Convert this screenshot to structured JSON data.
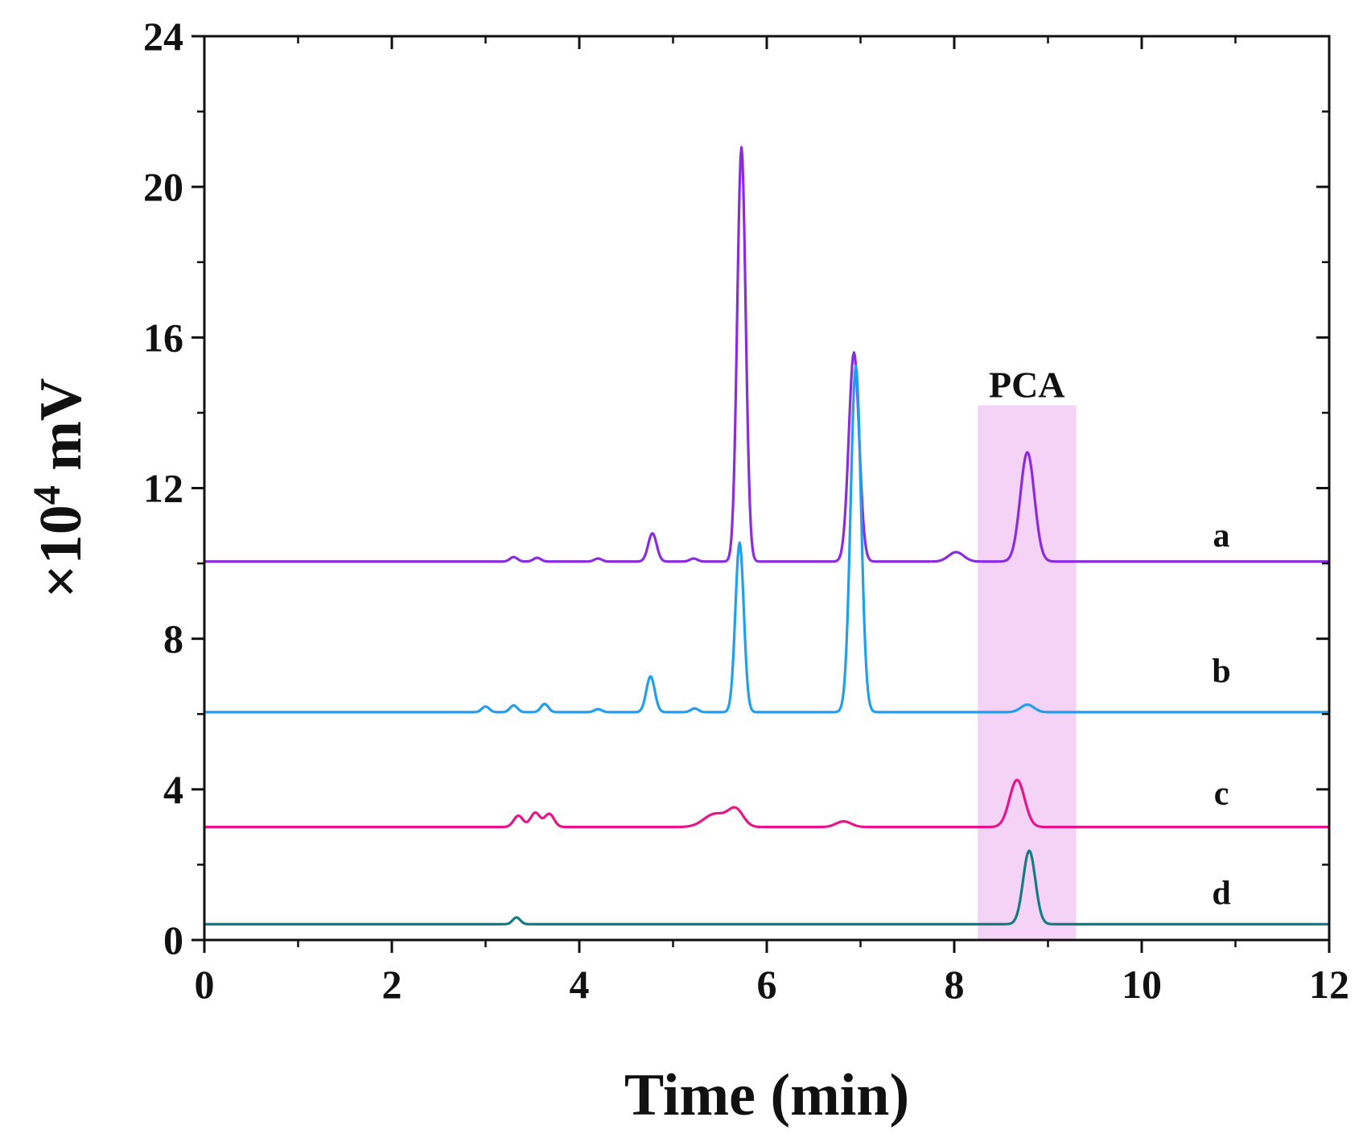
{
  "chart_data": {
    "type": "line",
    "xlabel": "Time (min)",
    "ylabel_prefix": "×10",
    "ylabel_exponent": "4",
    "ylabel_unit": " mV",
    "xlim": [
      0,
      12
    ],
    "ylim": [
      0,
      24
    ],
    "x_ticks": [
      0,
      2,
      4,
      6,
      8,
      10,
      12
    ],
    "y_ticks": [
      0,
      4,
      8,
      12,
      16,
      20,
      24
    ],
    "minor_ticks": true,
    "grid": false,
    "highlight_region": {
      "label": "PCA",
      "x_start": 8.25,
      "x_end": 9.3,
      "y_top": 14.2,
      "color": "#f5d3f7"
    },
    "series": [
      {
        "name": "a",
        "color": "#8a2be2",
        "baseline": 10.05,
        "label_x": 10.85,
        "label_y": 10.45,
        "peaks": [
          {
            "x": 3.3,
            "h": 0.12,
            "w": 0.04
          },
          {
            "x": 3.55,
            "h": 0.1,
            "w": 0.04
          },
          {
            "x": 4.2,
            "h": 0.08,
            "w": 0.04
          },
          {
            "x": 4.78,
            "h": 0.75,
            "w": 0.045
          },
          {
            "x": 5.22,
            "h": 0.08,
            "w": 0.04
          },
          {
            "x": 5.73,
            "h": 11.0,
            "w": 0.045
          },
          {
            "x": 6.93,
            "h": 5.55,
            "w": 0.055
          },
          {
            "x": 8.02,
            "h": 0.25,
            "w": 0.08
          },
          {
            "x": 8.78,
            "h": 2.9,
            "w": 0.075
          }
        ]
      },
      {
        "name": "b",
        "color": "#1e9fef",
        "baseline": 6.05,
        "label_x": 10.85,
        "label_y": 6.85,
        "peaks": [
          {
            "x": 3.0,
            "h": 0.15,
            "w": 0.04
          },
          {
            "x": 3.3,
            "h": 0.18,
            "w": 0.04
          },
          {
            "x": 3.63,
            "h": 0.22,
            "w": 0.04
          },
          {
            "x": 4.2,
            "h": 0.08,
            "w": 0.04
          },
          {
            "x": 4.76,
            "h": 0.95,
            "w": 0.045
          },
          {
            "x": 5.23,
            "h": 0.1,
            "w": 0.04
          },
          {
            "x": 5.71,
            "h": 4.5,
            "w": 0.045
          },
          {
            "x": 6.95,
            "h": 9.2,
            "w": 0.055
          },
          {
            "x": 8.78,
            "h": 0.2,
            "w": 0.07
          }
        ]
      },
      {
        "name": "c",
        "color": "#e6168a",
        "baseline": 3.0,
        "label_x": 10.85,
        "label_y": 3.6,
        "peaks": [
          {
            "x": 3.35,
            "h": 0.3,
            "w": 0.05
          },
          {
            "x": 3.53,
            "h": 0.38,
            "w": 0.05
          },
          {
            "x": 3.68,
            "h": 0.35,
            "w": 0.05
          },
          {
            "x": 5.45,
            "h": 0.35,
            "w": 0.12
          },
          {
            "x": 5.67,
            "h": 0.45,
            "w": 0.08
          },
          {
            "x": 6.82,
            "h": 0.15,
            "w": 0.08
          },
          {
            "x": 8.67,
            "h": 1.25,
            "w": 0.08
          }
        ]
      },
      {
        "name": "d",
        "color": "#157b82",
        "baseline": 0.42,
        "label_x": 10.85,
        "label_y": 0.95,
        "peaks": [
          {
            "x": 3.33,
            "h": 0.18,
            "w": 0.04
          },
          {
            "x": 8.8,
            "h": 1.95,
            "w": 0.065
          }
        ]
      }
    ]
  }
}
